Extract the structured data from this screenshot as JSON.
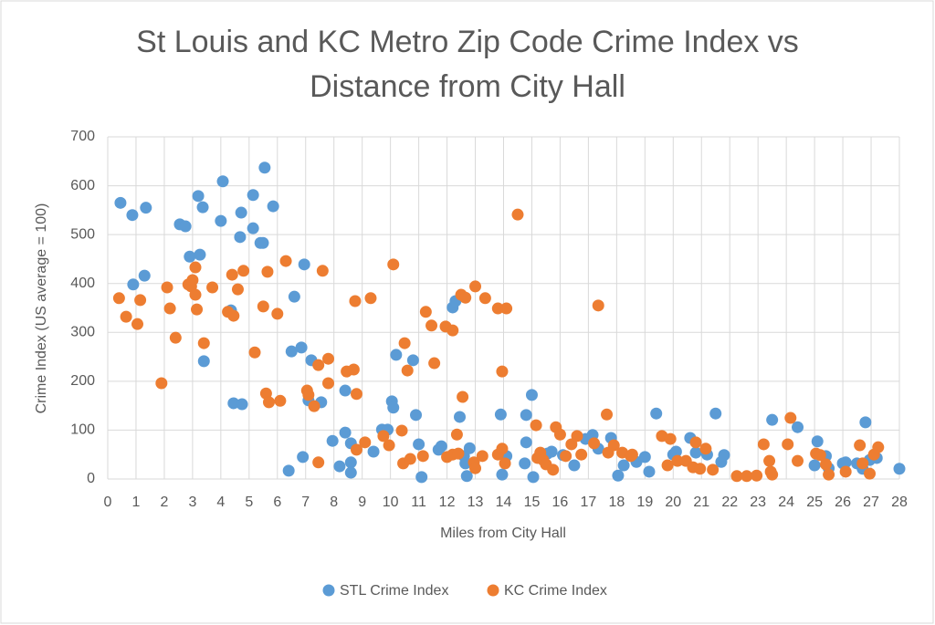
{
  "chart_data": {
    "type": "scatter",
    "title": "St Louis and KC Metro Zip Code Crime Index vs Distance from City Hall",
    "x_label": "Miles from City Hall",
    "y_label": "Crime Index (US average = 100)",
    "xlim": [
      0,
      28
    ],
    "ylim": [
      0,
      700
    ],
    "xticks": [
      0,
      1,
      2,
      3,
      4,
      5,
      6,
      7,
      8,
      9,
      10,
      11,
      12,
      13,
      14,
      15,
      16,
      17,
      18,
      19,
      20,
      21,
      22,
      23,
      24,
      25,
      26,
      27,
      28
    ],
    "yticks": [
      0,
      100,
      200,
      300,
      400,
      500,
      600,
      700
    ],
    "grid": true,
    "legend": "bottom",
    "series": [
      {
        "name": "STL Crime Index",
        "color": "#5b9bd5",
        "x": [
          0.45,
          0.87,
          0.9,
          1.3,
          1.35,
          2.55,
          2.75,
          2.9,
          3.2,
          3.26,
          3.36,
          3.4,
          4.0,
          4.07,
          4.36,
          4.45,
          4.68,
          4.72,
          4.75,
          5.14,
          5.14,
          5.4,
          5.49,
          5.55,
          5.85,
          6.4,
          6.6,
          6.5,
          6.85,
          6.95,
          6.9,
          7.1,
          7.2,
          7.55,
          7.95,
          8.2,
          8.4,
          8.4,
          8.6,
          8.6,
          8.6,
          9.4,
          9.7,
          9.9,
          10.05,
          10.1,
          10.2,
          10.8,
          10.9,
          11.0,
          11.1,
          11.7,
          11.8,
          12.2,
          12.3,
          12.45,
          12.6,
          12.65,
          12.7,
          12.8,
          13.9,
          13.95,
          14.1,
          14.8,
          14.8,
          15.0,
          15.05,
          14.75,
          15.55,
          15.7,
          16.1,
          16.5,
          16.9,
          17.15,
          17.35,
          17.8,
          18.05,
          18.25,
          18.7,
          19.0,
          19.15,
          19.4,
          20.0,
          20.1,
          20.6,
          20.8,
          21.2,
          21.5,
          21.7,
          21.8,
          23.5,
          24.4,
          25.1,
          25.0,
          25.4,
          25.5,
          26.0,
          26.1,
          26.5,
          26.7,
          26.8,
          26.95,
          27.2,
          28.0
        ],
        "values": [
          565,
          540,
          398,
          416,
          555,
          521,
          517,
          455,
          579,
          459,
          556,
          241,
          528,
          609,
          345,
          155,
          495,
          545,
          153,
          581,
          513,
          483,
          483,
          637,
          558,
          17,
          373,
          261,
          269,
          439,
          45,
          161,
          243,
          157,
          78,
          26,
          181,
          95,
          73,
          34,
          13,
          56,
          101,
          101,
          159,
          146,
          254,
          243,
          131,
          71,
          4,
          60,
          67,
          351,
          364,
          127,
          47,
          32,
          6,
          63,
          132,
          9,
          47,
          75,
          131,
          172,
          4,
          32,
          52,
          56,
          49,
          28,
          82,
          90,
          62,
          84,
          7,
          28,
          35,
          45,
          15,
          134,
          50,
          56,
          84,
          54,
          50,
          134,
          35,
          49,
          121,
          106,
          77,
          28,
          47,
          22,
          32,
          34,
          32,
          21,
          116,
          39,
          43,
          21
        ]
      },
      {
        "name": "KC Crime Index",
        "color": "#ed7d31",
        "x": [
          0.4,
          0.65,
          1.05,
          1.15,
          1.9,
          2.1,
          2.2,
          2.4,
          2.85,
          2.95,
          3.0,
          3.1,
          3.1,
          3.15,
          3.4,
          3.7,
          4.25,
          4.4,
          4.45,
          4.6,
          4.8,
          5.2,
          5.5,
          5.6,
          5.65,
          5.7,
          6.0,
          6.1,
          6.3,
          7.05,
          7.1,
          7.3,
          7.45,
          7.45,
          7.6,
          7.8,
          7.8,
          8.45,
          8.7,
          8.75,
          8.8,
          8.8,
          9.1,
          9.3,
          9.75,
          9.95,
          10.1,
          10.4,
          10.45,
          10.5,
          10.6,
          10.7,
          11.15,
          11.25,
          11.45,
          11.55,
          11.95,
          12.2,
          12.0,
          12.2,
          12.35,
          12.4,
          12.5,
          12.55,
          12.65,
          12.95,
          13.0,
          13.0,
          13.25,
          13.35,
          13.8,
          13.8,
          13.95,
          13.95,
          14.1,
          14.05,
          14.5,
          15.15,
          15.2,
          15.3,
          15.4,
          15.5,
          15.75,
          15.85,
          16.0,
          16.2,
          16.4,
          16.6,
          16.75,
          17.2,
          17.35,
          17.65,
          17.7,
          17.9,
          18.2,
          18.5,
          18.55,
          19.6,
          19.8,
          19.9,
          20.15,
          20.45,
          20.7,
          20.8,
          20.95,
          21.15,
          21.4,
          22.25,
          22.6,
          22.95,
          23.2,
          23.4,
          23.45,
          23.5,
          24.05,
          24.15,
          24.4,
          25.05,
          25.2,
          25.4,
          25.5,
          26.1,
          26.6,
          26.7,
          26.95,
          27.1,
          27.25
        ],
        "values": [
          370,
          332,
          317,
          366,
          196,
          392,
          349,
          289,
          398,
          394,
          407,
          377,
          433,
          347,
          278,
          392,
          342,
          418,
          334,
          388,
          426,
          259,
          353,
          175,
          424,
          157,
          338,
          160,
          446,
          181,
          172,
          149,
          34,
          233,
          426,
          246,
          196,
          220,
          224,
          364,
          174,
          60,
          75,
          370,
          88,
          69,
          439,
          99,
          32,
          278,
          222,
          41,
          47,
          342,
          314,
          237,
          312,
          304,
          45,
          50,
          91,
          52,
          377,
          168,
          371,
          34,
          394,
          22,
          47,
          370,
          349,
          50,
          62,
          220,
          349,
          32,
          541,
          110,
          43,
          54,
          39,
          30,
          19,
          106,
          91,
          47,
          71,
          88,
          50,
          73,
          355,
          132,
          54,
          69,
          54,
          47,
          50,
          88,
          28,
          82,
          37,
          37,
          24,
          75,
          21,
          62,
          19,
          6,
          6,
          7,
          71,
          37,
          15,
          9,
          71,
          125,
          37,
          52,
          49,
          30,
          9,
          15,
          69,
          32,
          11,
          50,
          65
        ]
      }
    ]
  }
}
